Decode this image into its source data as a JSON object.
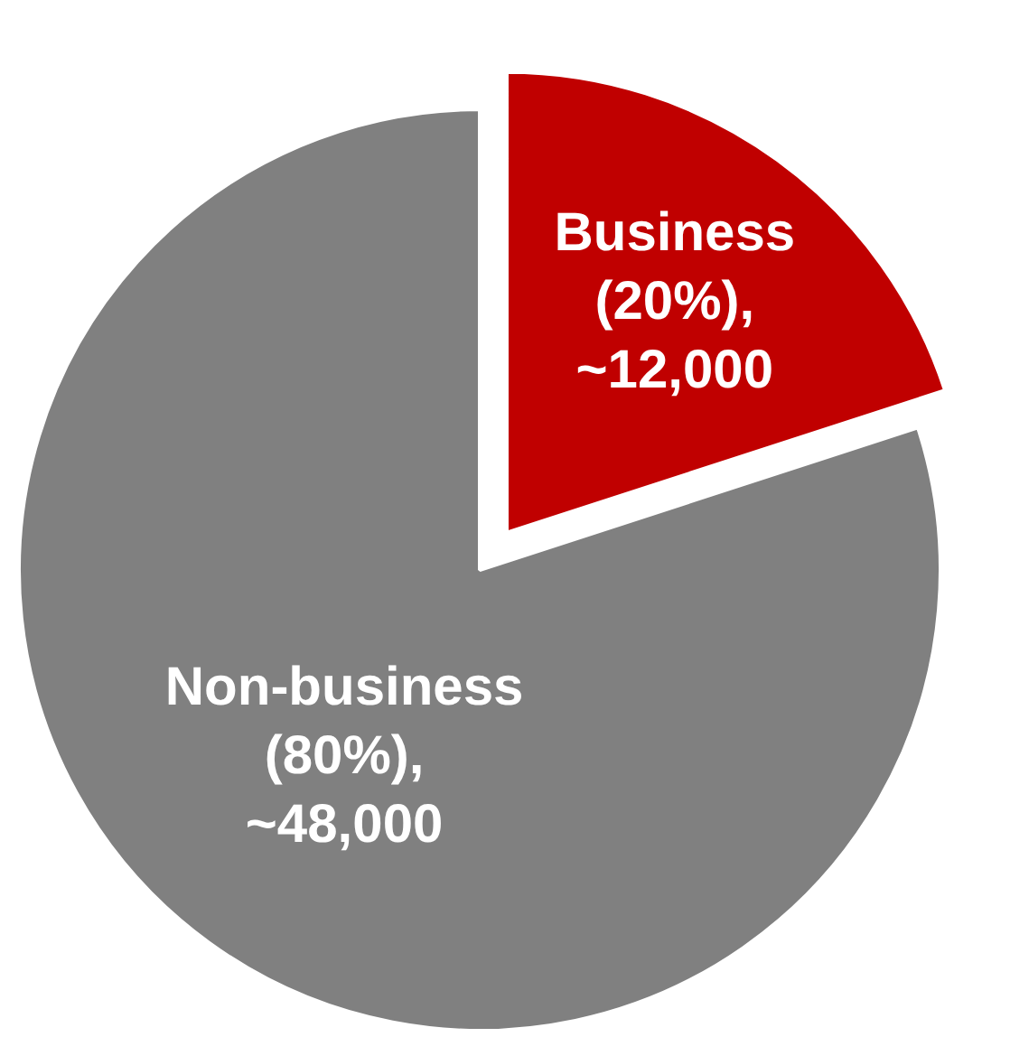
{
  "chart_data": {
    "type": "pie",
    "categories": [
      "Business",
      "Non-business"
    ],
    "values": [
      12000,
      48000
    ],
    "value_labels": [
      "(20%),\n~12,000",
      "(80%),\n~48,000"
    ],
    "colors": [
      "#c00000",
      "#808080"
    ],
    "legend": false
  }
}
